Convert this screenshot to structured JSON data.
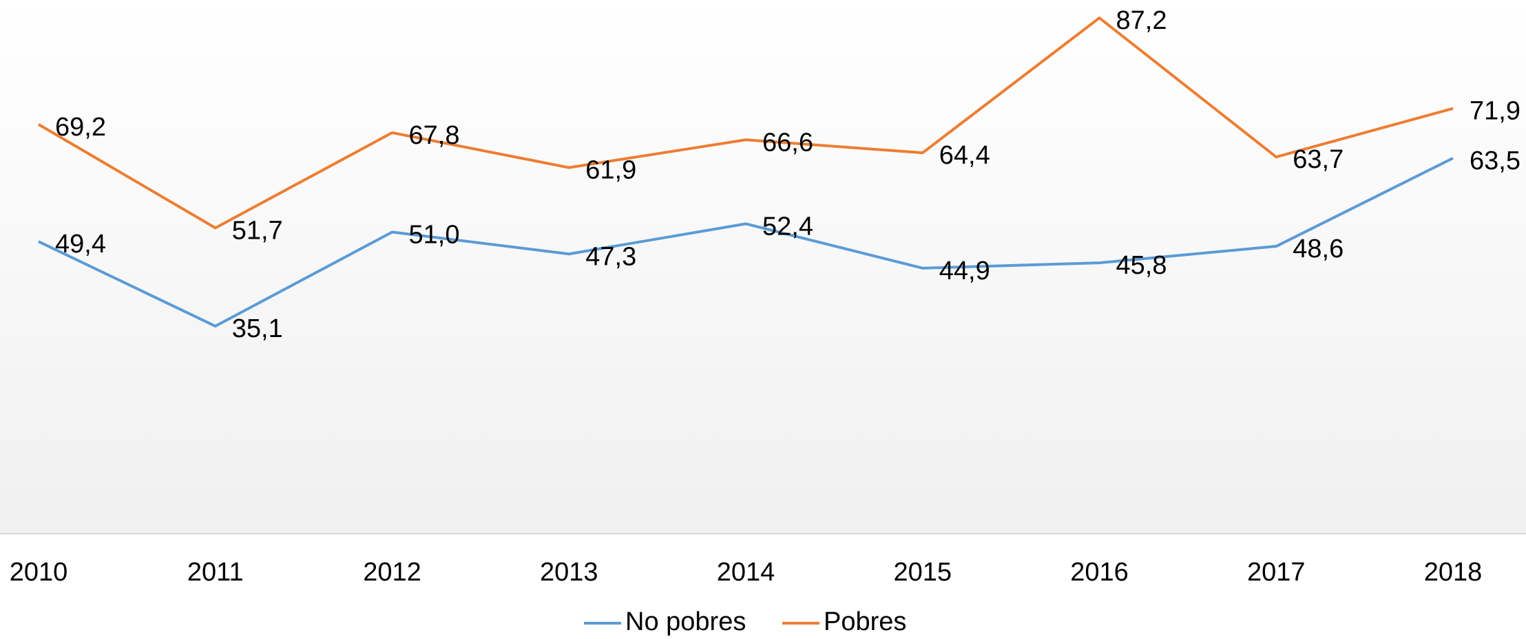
{
  "chart_data": {
    "type": "line",
    "categories": [
      "2010",
      "2011",
      "2012",
      "2013",
      "2014",
      "2015",
      "2016",
      "2017",
      "2018"
    ],
    "series": [
      {
        "name": "No pobres",
        "color": "#5b9bd5",
        "values": [
          49.4,
          35.1,
          51.0,
          47.3,
          52.4,
          44.9,
          45.8,
          48.6,
          63.5
        ],
        "value_labels": [
          "49,4",
          "35,1",
          "51,0",
          "47,3",
          "52,4",
          "44,9",
          "45,8",
          "48,6",
          "63,5"
        ]
      },
      {
        "name": "Pobres",
        "color": "#ed7d31",
        "values": [
          69.2,
          51.7,
          67.8,
          61.9,
          66.6,
          64.4,
          87.2,
          63.7,
          71.9
        ],
        "value_labels": [
          "69,2",
          "51,7",
          "67,8",
          "61,9",
          "66,6",
          "64,4",
          "87,2",
          "63,7",
          "71,9"
        ]
      }
    ],
    "ylim": [
      0,
      90
    ],
    "legend": "bottom"
  }
}
